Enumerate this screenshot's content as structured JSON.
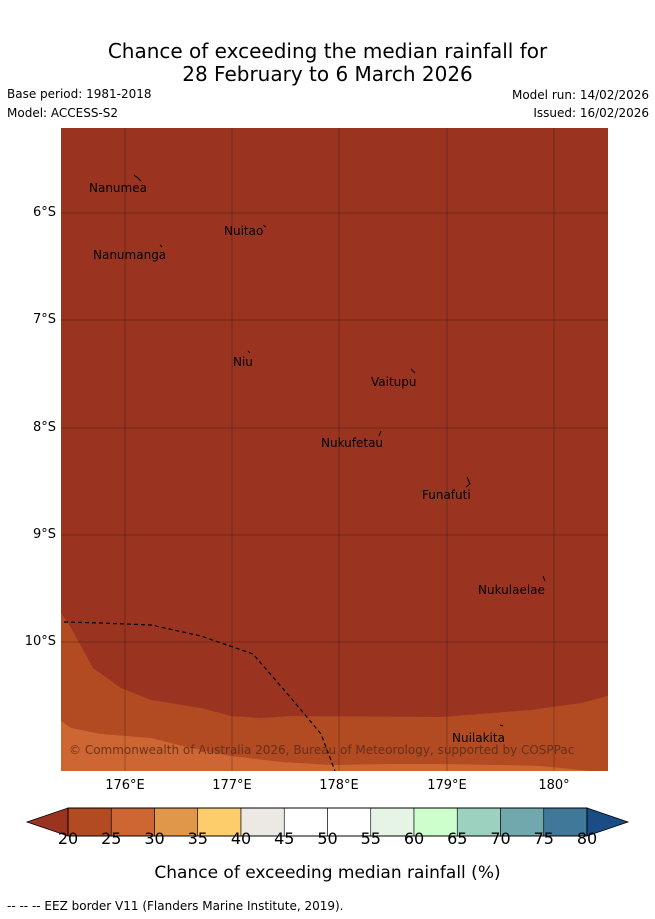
{
  "title": {
    "line1": "Chance of exceeding the median rainfall for",
    "line2": "28 February to 6 March 2026"
  },
  "meta": {
    "base_period": "Base period: 1981-2018",
    "model": "Model: ACCESS-S2",
    "model_run": "Model run: 14/02/2026",
    "issued": "Issued: 16/02/2026"
  },
  "map": {
    "lat_labels": [
      "6°S",
      "7°S",
      "8°S",
      "9°S",
      "10°S"
    ],
    "lon_labels": [
      "176°E",
      "177°E",
      "178°E",
      "179°E",
      "180°"
    ],
    "islands": [
      "Nanumea",
      "Nuitao",
      "Nanumanga",
      "Niu",
      "Vaitupu",
      "Nukufetau",
      "Funafuti",
      "Nukulaelae",
      "Nuilakita"
    ],
    "copyright": "© Commonwealth of Australia 2026, Bureau of Meteorology, supported by COSPPac"
  },
  "colorbar": {
    "ticks": [
      "20",
      "25",
      "30",
      "35",
      "40",
      "45",
      "50",
      "55",
      "60",
      "65",
      "70",
      "75",
      "80"
    ],
    "colors": [
      "#b24a22",
      "#cd6633",
      "#e0974a",
      "#fdcd6c",
      "#ece8e3",
      "#ffffff",
      "#ffffff",
      "#e6f4e5",
      "#ccffcc",
      "#9dd1bf",
      "#71a8ad",
      "#3f7898"
    ],
    "under_color": "#9a3421",
    "over_color": "#1a4d85",
    "title": "Chance of exceeding median rainfall (%)"
  },
  "footnote": "-- -- -- EEZ border V11 (Flanders Marine Institute, 2019)."
}
